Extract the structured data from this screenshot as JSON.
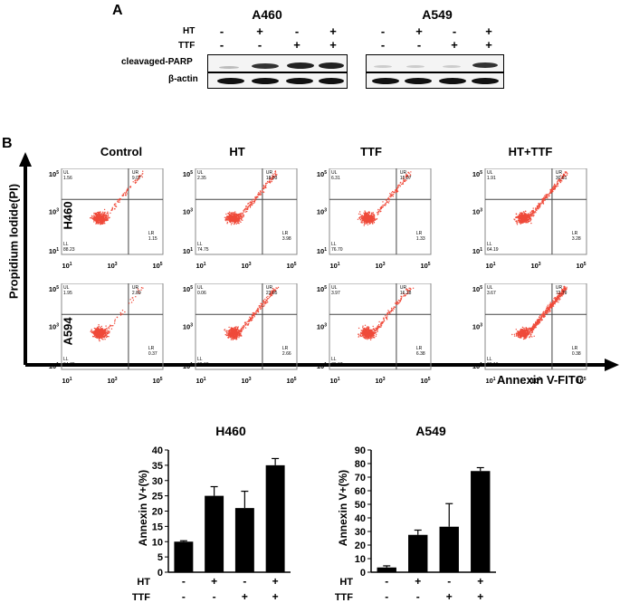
{
  "panel_a": {
    "label": "A",
    "row_labels": {
      "ht": "HT",
      "ttf": "TTF",
      "parp": "cleavaged-PARP",
      "actin": "β-actin"
    },
    "groups": [
      {
        "name": "A460",
        "ht": [
          "-",
          "+",
          "-",
          "+"
        ],
        "ttf": [
          "-",
          "-",
          "+",
          "+"
        ]
      },
      {
        "name": "A549",
        "ht": [
          "-",
          "+",
          "-",
          "+"
        ],
        "ttf": [
          "-",
          "-",
          "+",
          "+"
        ]
      }
    ]
  },
  "panel_b": {
    "label": "B",
    "column_titles": [
      "Control",
      "HT",
      "TTF",
      "HT+TTF"
    ],
    "row_titles": [
      "H460",
      "A594"
    ],
    "y_axis_title": "Propidium Iodide(PI)",
    "x_axis_title": "Annexin V-FITC",
    "quadrant_labels": {
      "ul": "UL",
      "ur": "UR",
      "ll": "LL",
      "lr": "LR"
    },
    "tick_labels": {
      "exp1": "1",
      "exp3": "3",
      "exp5": "5",
      "base": "10"
    },
    "plots": [
      [
        {
          "ul": "1.56",
          "ur": "9.07",
          "ll": "88.23",
          "lr": "1.15"
        },
        {
          "ul": "2.35",
          "ur": "18.93",
          "ll": "74.75",
          "lr": "3.98"
        },
        {
          "ul": "6.31",
          "ur": "15.87",
          "ll": "76.70",
          "lr": "1.33"
        },
        {
          "ul": "1.91",
          "ur": "30.61",
          "ll": "64.19",
          "lr": "3.28"
        }
      ],
      [
        {
          "ul": "1.95",
          "ur": "2.89",
          "ll": "94.78",
          "lr": "0.37"
        },
        {
          "ul": "0.06",
          "ur": "23.65",
          "ll": "69.63",
          "lr": "2.66"
        },
        {
          "ul": "3.97",
          "ur": "16.28",
          "ll": "73.37",
          "lr": "6.38"
        },
        {
          "ul": "3.67",
          "ur": "72.79",
          "ll": "23.16",
          "lr": "0.38"
        }
      ]
    ]
  },
  "chart_data": [
    {
      "type": "bar",
      "title": "H460",
      "ylabel": "Annexin V+(%)",
      "ylim": [
        0,
        40
      ],
      "yticks": [
        0,
        5,
        10,
        15,
        20,
        25,
        30,
        35,
        40
      ],
      "row_labels": [
        "HT",
        "TTF"
      ],
      "rows": [
        [
          "-",
          "+",
          "-",
          "+"
        ],
        [
          "-",
          "-",
          "+",
          "+"
        ]
      ],
      "values": [
        10,
        25,
        21,
        35
      ],
      "errors": [
        0.3,
        3,
        5.5,
        2.2
      ]
    },
    {
      "type": "bar",
      "title": "A549",
      "ylabel": "Annexin V+(%)",
      "ylim": [
        0,
        90
      ],
      "yticks": [
        0,
        10,
        20,
        30,
        40,
        50,
        60,
        70,
        80,
        90
      ],
      "row_labels": [
        "HT",
        "TTF"
      ],
      "rows": [
        [
          "-",
          "+",
          "-",
          "+"
        ],
        [
          "-",
          "-",
          "+",
          "+"
        ]
      ],
      "values": [
        3.5,
        27.5,
        33.5,
        74.5
      ],
      "errors": [
        1.2,
        3.5,
        17,
        2.5
      ]
    }
  ],
  "colors": {
    "dots": "#ef4a3a",
    "bars": "#000000"
  }
}
